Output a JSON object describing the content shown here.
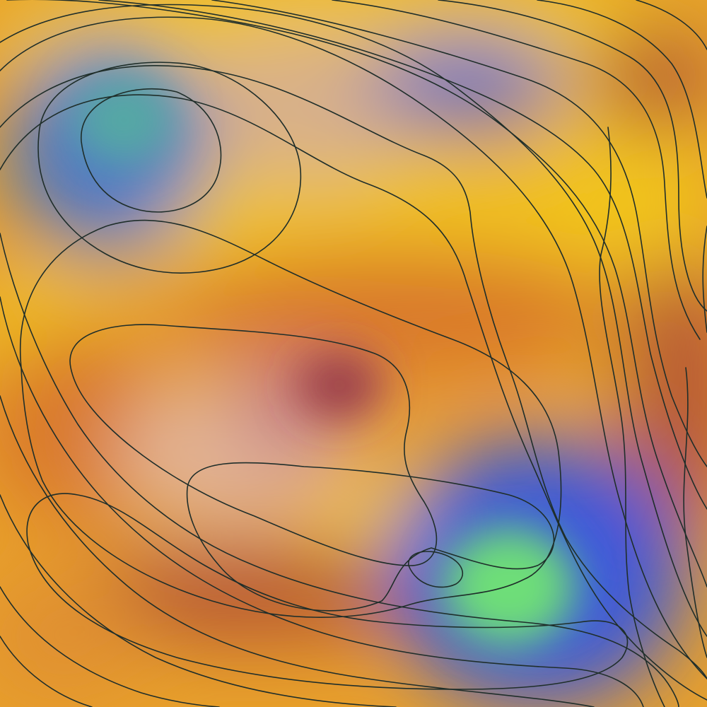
{
  "colors": {
    "base": "#e8a02a",
    "yellow": "#f2c41f",
    "deep_orange": "#d9782a",
    "rust": "#b85a35",
    "maroon": "#9a3d4a",
    "peach": "#e2b394",
    "mauve": "#c4808a",
    "blue_violet": "#6f74c4",
    "royal_blue": "#3a58dc",
    "steel_blue": "#4f78c8",
    "teal": "#55a8a4",
    "green": "#6ede78",
    "contour_stroke": "#1f2e2a"
  },
  "artwork": {
    "kind": "abstract contour field over smooth color gradient",
    "contour_line_count": 24
  }
}
